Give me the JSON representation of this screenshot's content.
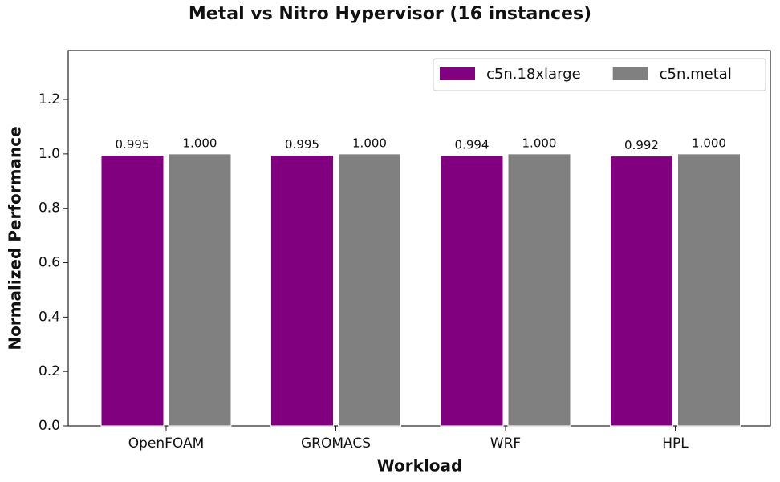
{
  "chart_data": {
    "type": "bar",
    "title": "Metal vs Nitro Hypervisor (16 instances)",
    "x_label": "Workload",
    "y_label": "Normalized Performance",
    "categories": [
      "OpenFOAM",
      "GROMACS",
      "WRF",
      "HPL"
    ],
    "series": [
      {
        "name": "c5n.18xlarge",
        "color": "#800080",
        "values": [
          0.995,
          0.995,
          0.994,
          0.992
        ]
      },
      {
        "name": "c5n.metal",
        "color": "#808080",
        "values": [
          1,
          1,
          1,
          1
        ],
        "value_labels": [
          "1.000",
          "1.000",
          "1.000",
          "1.000"
        ]
      }
    ],
    "ylim": [
      0,
      1.38
    ],
    "yticks": [
      {
        "value": 0,
        "label": "0.0"
      },
      {
        "value": 0.2,
        "label": "0.2"
      },
      {
        "value": 0.4,
        "label": "0.4"
      },
      {
        "value": 0.6,
        "label": "0.6"
      },
      {
        "value": 0.8,
        "label": "0.8"
      },
      {
        "value": 1,
        "label": "1.0"
      },
      {
        "value": 1.2,
        "label": "1.2"
      }
    ],
    "legend": "upper right"
  }
}
